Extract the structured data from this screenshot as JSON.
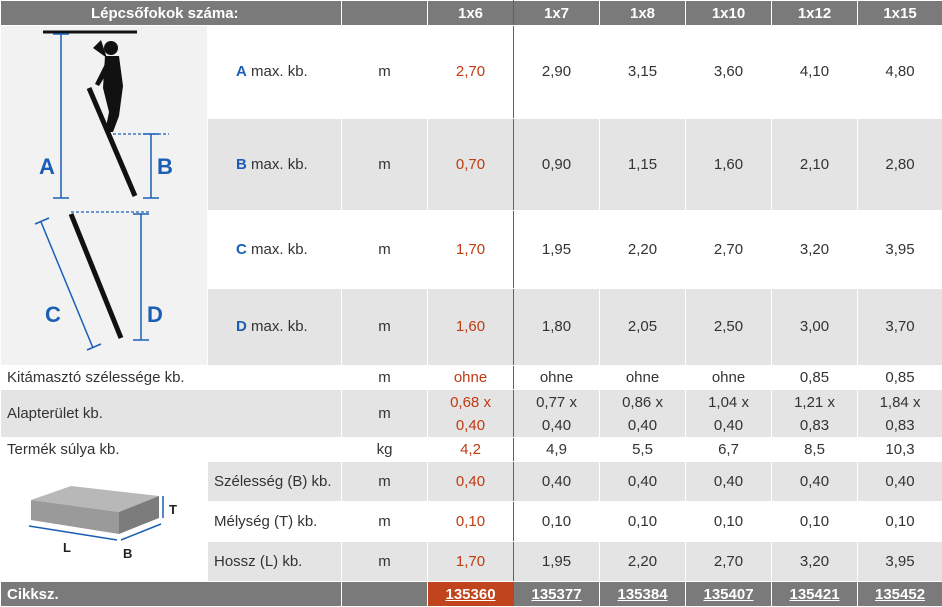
{
  "header": {
    "title": "Lépcsőfokok száma:",
    "columns": [
      "1x6",
      "1x7",
      "1x8",
      "1x10",
      "1x12",
      "1x15"
    ]
  },
  "diagram_labels": {
    "a": "A",
    "b": "B",
    "c": "C",
    "d": "D"
  },
  "box_labels": {
    "t": "T",
    "l": "L",
    "b": "B"
  },
  "rows_abcd": [
    {
      "letter": "A",
      "label": "max. kb.",
      "unit": "m",
      "values": [
        "2,70",
        "2,90",
        "3,15",
        "3,60",
        "4,10",
        "4,80"
      ]
    },
    {
      "letter": "B",
      "label": "max. kb.",
      "unit": "m",
      "values": [
        "0,70",
        "0,90",
        "1,15",
        "1,60",
        "2,10",
        "2,80"
      ]
    },
    {
      "letter": "C",
      "label": "max. kb.",
      "unit": "m",
      "values": [
        "1,70",
        "1,95",
        "2,20",
        "2,70",
        "3,20",
        "3,95"
      ]
    },
    {
      "letter": "D",
      "label": "max. kb.",
      "unit": "m",
      "values": [
        "1,60",
        "1,80",
        "2,05",
        "2,50",
        "3,00",
        "3,70"
      ]
    }
  ],
  "rows_general": [
    {
      "label": "Kitámasztó szélessége kb.",
      "unit": "m",
      "values": [
        "ohne",
        "ohne",
        "ohne",
        "ohne",
        "0,85",
        "0,85"
      ]
    },
    {
      "label": "Alapterület kb.",
      "unit": "m",
      "values": [
        [
          "0,68 x",
          "0,40"
        ],
        [
          "0,77 x",
          "0,40"
        ],
        [
          "0,86 x",
          "0,40"
        ],
        [
          "1,04 x",
          "0,40"
        ],
        [
          "1,21 x",
          "0,83"
        ],
        [
          "1,84 x",
          "0,83"
        ]
      ]
    },
    {
      "label": "Termék súlya kb.",
      "unit": "kg",
      "values": [
        "4,2",
        "4,9",
        "5,5",
        "6,7",
        "8,5",
        "10,3"
      ]
    }
  ],
  "rows_dims": [
    {
      "label": "Szélesség (B) kb.",
      "unit": "m",
      "values": [
        "0,40",
        "0,40",
        "0,40",
        "0,40",
        "0,40",
        "0,40"
      ]
    },
    {
      "label": "Mélység (T) kb.",
      "unit": "m",
      "values": [
        "0,10",
        "0,10",
        "0,10",
        "0,10",
        "0,10",
        "0,10"
      ]
    },
    {
      "label": "Hossz (L) kb.",
      "unit": "m",
      "values": [
        "1,70",
        "1,95",
        "2,20",
        "2,70",
        "3,20",
        "3,95"
      ]
    }
  ],
  "footer": {
    "label": "Cikksz.",
    "article_numbers": [
      "135360",
      "135377",
      "135384",
      "135407",
      "135421",
      "135452"
    ]
  },
  "colors": {
    "header_bg": "#7a7a7a",
    "stripe": "#e4e4e4",
    "accent": "#c03a12",
    "letter_blue": "#1a5fb4"
  }
}
